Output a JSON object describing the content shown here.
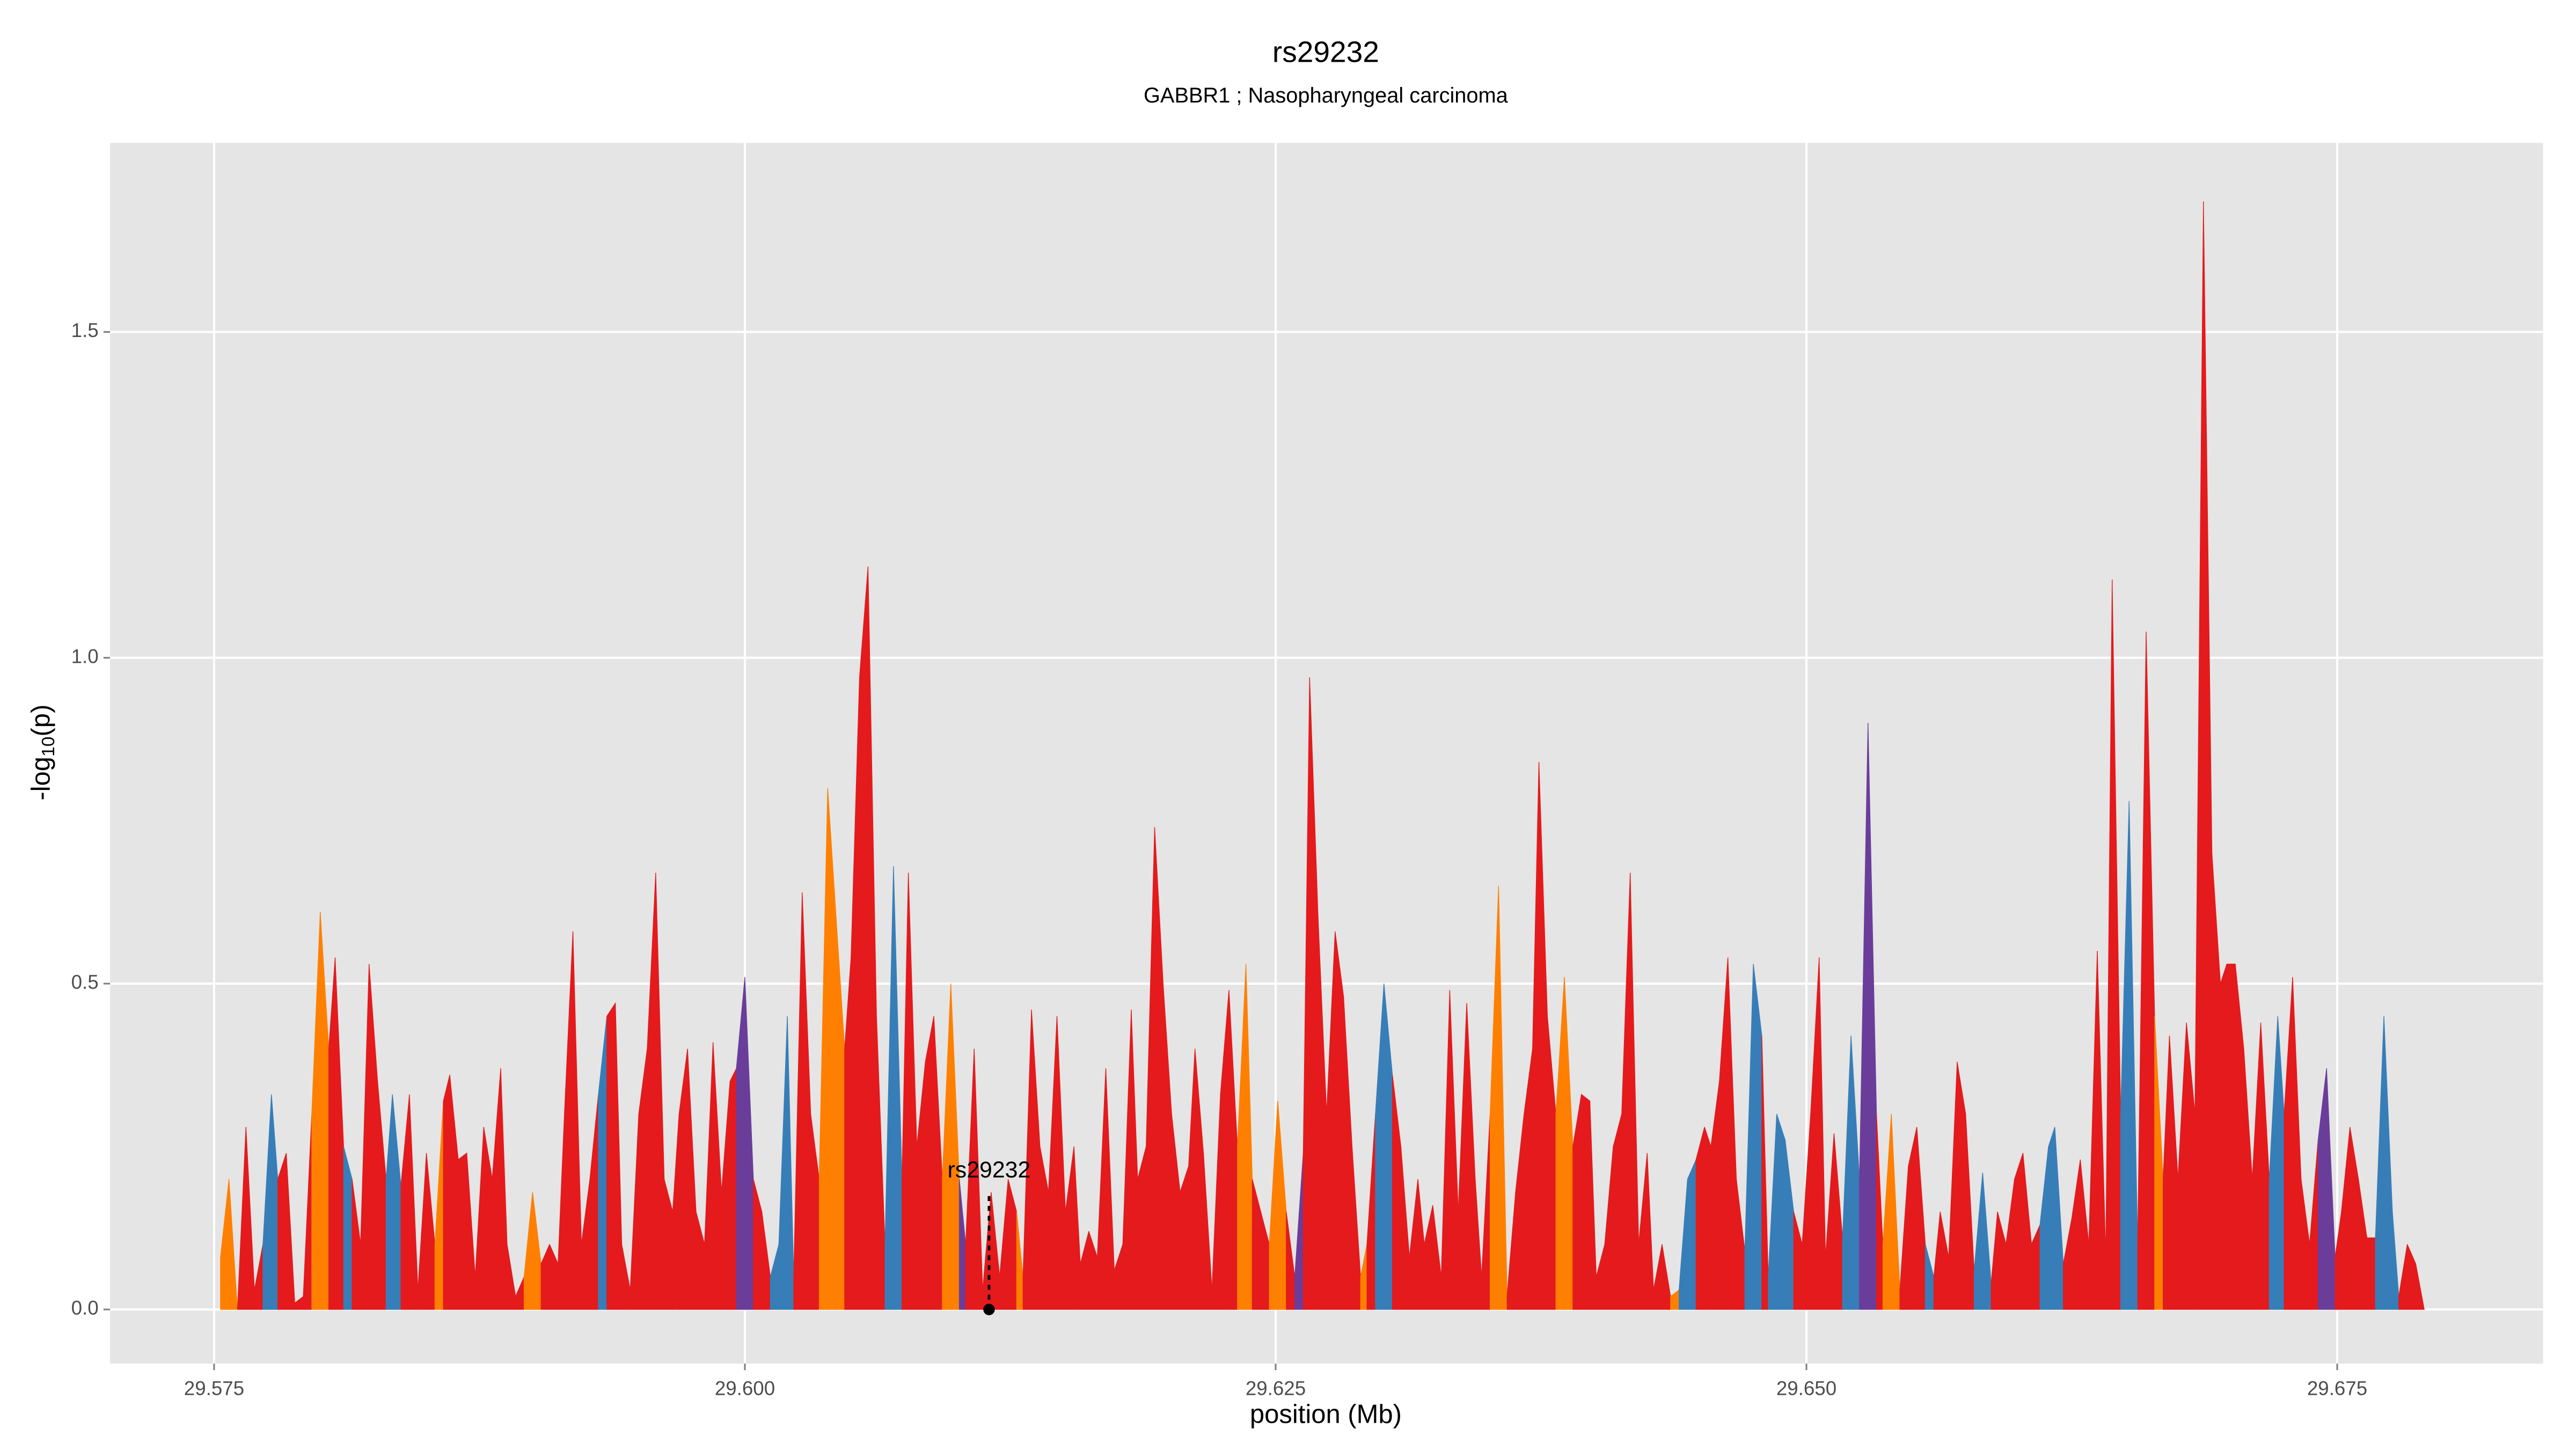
{
  "chart_data": {
    "type": "area",
    "title": "rs29232",
    "subtitle": "GABBR1 ; Nasopharyngeal carcinoma",
    "xlabel": "position (Mb)",
    "ylabel": [
      "-log",
      "10",
      "(p)"
    ],
    "xlim": [
      29.5701,
      29.6847
    ],
    "ylim": [
      -0.083,
      1.79
    ],
    "xticks": [
      29.575,
      {
        "value": 29.6,
        "label": "29.600"
      },
      29.625,
      {
        "value": 29.65,
        "label": "29.650"
      },
      29.675
    ],
    "yticks": [
      {
        "value": 0,
        "label": "0.0"
      },
      0.5,
      {
        "value": 1,
        "label": "1.0"
      },
      1.5
    ],
    "grid": true,
    "annotation": {
      "text": "rs29232",
      "x": 29.6115,
      "y": 0
    },
    "x": [
      29.5753,
      29.5757,
      29.5761,
      29.5765,
      29.5769,
      29.5773,
      29.5777,
      29.578,
      29.5784,
      29.5788,
      29.5792,
      29.5796,
      29.58,
      29.5804,
      29.5807,
      29.5811,
      29.5815,
      29.5819,
      29.5823,
      29.5827,
      29.5831,
      29.5834,
      29.5838,
      29.5842,
      29.5846,
      29.585,
      29.5854,
      29.5858,
      29.5861,
      29.5865,
      29.5869,
      29.5873,
      29.5877,
      29.5881,
      29.5885,
      29.5888,
      29.5892,
      29.5896,
      29.59,
      29.5904,
      29.5908,
      29.5912,
      29.5915,
      29.5919,
      29.5923,
      29.5927,
      29.5931,
      29.5935,
      29.5939,
      29.5942,
      29.5946,
      29.595,
      29.5954,
      29.5958,
      29.5962,
      29.5966,
      29.5969,
      29.5973,
      29.5977,
      29.5981,
      29.5985,
      29.5989,
      29.5993,
      29.5996,
      29.6,
      29.6004,
      29.6008,
      29.6012,
      29.6016,
      29.602,
      29.6023,
      29.6027,
      29.6031,
      29.6035,
      29.6039,
      29.6043,
      29.6047,
      29.605,
      29.6054,
      29.6058,
      29.6062,
      29.6066,
      29.607,
      29.6074,
      29.6077,
      29.6081,
      29.6085,
      29.6089,
      29.6093,
      29.6097,
      29.6101,
      29.6104,
      29.6108,
      29.6112,
      29.6116,
      29.612,
      29.6124,
      29.6128,
      29.6131,
      29.6135,
      29.6139,
      29.6143,
      29.6147,
      29.6151,
      29.6155,
      29.6158,
      29.6162,
      29.6166,
      29.617,
      29.6174,
      29.6178,
      29.6182,
      29.6185,
      29.6189,
      29.6193,
      29.6197,
      29.6201,
      29.6205,
      29.6209,
      29.6212,
      29.6216,
      29.622,
      29.6224,
      29.6228,
      29.6232,
      29.6236,
      29.6239,
      29.6243,
      29.6247,
      29.6251,
      29.6255,
      29.6259,
      29.6263,
      29.6266,
      29.627,
      29.6274,
      29.6278,
      29.6282,
      29.6286,
      29.629,
      29.6293,
      29.6297,
      29.6301,
      29.6305,
      29.6309,
      29.6313,
      29.6317,
      29.632,
      29.6324,
      29.6328,
      29.6332,
      29.6336,
      29.634,
      29.6344,
      29.6347,
      29.6351,
      29.6355,
      29.6359,
      29.6363,
      29.6367,
      29.6371,
      29.6374,
      29.6378,
      29.6382,
      29.6386,
      29.639,
      29.6394,
      29.6398,
      29.6401,
      29.6405,
      29.6409,
      29.6413,
      29.6417,
      29.6421,
      29.6425,
      29.6428,
      29.6432,
      29.6436,
      29.644,
      29.6444,
      29.6448,
      29.6452,
      29.6455,
      29.6459,
      29.6463,
      29.6467,
      29.6471,
      29.6475,
      29.6479,
      29.6482,
      29.6486,
      29.649,
      29.6494,
      29.6498,
      29.6502,
      29.6506,
      29.6509,
      29.6513,
      29.6517,
      29.6521,
      29.6525,
      29.6529,
      29.6533,
      29.6536,
      29.654,
      29.6544,
      29.6548,
      29.6552,
      29.6556,
      29.656,
      29.6563,
      29.6567,
      29.6571,
      29.6575,
      29.6579,
      29.6583,
      29.6587,
      29.659,
      29.6594,
      29.6598,
      29.6602,
      29.6606,
      29.661,
      29.6614,
      29.6617,
      29.6621,
      29.6625,
      29.6629,
      29.6633,
      29.6637,
      29.6641,
      29.6644,
      29.6648,
      29.6652,
      29.6656,
      29.666,
      29.6664,
      29.6668,
      29.6671,
      29.6675,
      29.6679,
      29.6683,
      29.6687,
      29.6691,
      29.6695,
      29.6698,
      29.6702,
      29.6706,
      29.671,
      29.6714,
      29.6718,
      29.6722,
      29.6725,
      29.6729,
      29.6733,
      29.6737,
      29.6741,
      29.6745,
      29.6749,
      29.6752,
      29.6756,
      29.676,
      29.6764,
      29.6768,
      29.6772,
      29.6776,
      29.6779,
      29.6783,
      29.6787,
      29.6791
    ],
    "values": [
      0.08,
      0.2,
      0,
      0.28,
      0.03,
      0.1,
      0.33,
      0.2,
      0.24,
      0.01,
      0.02,
      0.3,
      0.61,
      0.4,
      0.54,
      0.25,
      0.2,
      0.1,
      0.53,
      0.35,
      0.2,
      0.33,
      0.19,
      0.33,
      0.03,
      0.24,
      0.1,
      0.32,
      0.36,
      0.23,
      0.24,
      0.05,
      0.28,
      0.2,
      0.37,
      0.1,
      0.02,
      0.05,
      0.18,
      0.07,
      0.1,
      0.07,
      0.3,
      0.58,
      0.1,
      0.2,
      0.33,
      0.45,
      0.47,
      0.1,
      0.03,
      0.3,
      0.4,
      0.67,
      0.2,
      0.15,
      0.3,
      0.4,
      0.15,
      0.1,
      0.41,
      0.18,
      0.35,
      0.37,
      0.51,
      0.2,
      0.15,
      0.05,
      0.1,
      0.45,
      0.05,
      0.64,
      0.3,
      0.2,
      0.8,
      0.6,
      0.4,
      0.54,
      0.97,
      1.14,
      0.45,
      0.1,
      0.68,
      0.2,
      0.67,
      0.25,
      0.38,
      0.45,
      0.2,
      0.5,
      0.2,
      0.1,
      0.4,
      0.03,
      0.18,
      0.05,
      0.2,
      0.15,
      0.05,
      0.46,
      0.25,
      0.18,
      0.45,
      0.15,
      0.25,
      0.07,
      0.12,
      0.08,
      0.37,
      0.06,
      0.1,
      0.46,
      0.2,
      0.25,
      0.74,
      0.5,
      0.3,
      0.18,
      0.22,
      0.4,
      0.24,
      0.03,
      0.33,
      0.49,
      0.25,
      0.53,
      0.2,
      0.15,
      0.1,
      0.32,
      0.15,
      0.05,
      0.24,
      0.97,
      0.6,
      0.3,
      0.58,
      0.48,
      0.25,
      0.05,
      0.1,
      0.3,
      0.5,
      0.36,
      0.25,
      0.08,
      0.2,
      0.1,
      0.16,
      0.05,
      0.49,
      0.15,
      0.47,
      0.2,
      0.05,
      0.3,
      0.65,
      0.02,
      0.18,
      0.3,
      0.4,
      0.84,
      0.45,
      0.3,
      0.51,
      0.25,
      0.33,
      0.32,
      0.05,
      0.1,
      0.25,
      0.3,
      0.67,
      0.1,
      0.24,
      0.03,
      0.1,
      0.02,
      0.03,
      0.2,
      0.23,
      0.28,
      0.25,
      0.35,
      0.54,
      0.2,
      0.09,
      0.53,
      0.42,
      0.05,
      0.3,
      0.26,
      0.15,
      0.1,
      0.3,
      0.54,
      0.08,
      0.27,
      0.11,
      0.42,
      0.2,
      0.9,
      0.3,
      0.1,
      0.3,
      0.03,
      0.22,
      0.28,
      0.1,
      0.05,
      0.15,
      0.08,
      0.38,
      0.3,
      0.06,
      0.21,
      0.04,
      0.15,
      0.1,
      0.2,
      0.24,
      0.1,
      0.13,
      0.25,
      0.28,
      0.07,
      0.14,
      0.23,
      0.1,
      0.55,
      0.08,
      1.12,
      0.3,
      0.78,
      0.1,
      1.04,
      0.45,
      0.2,
      0.42,
      0.2,
      0.44,
      0.3,
      1.7,
      0.7,
      0.5,
      0.53,
      0.53,
      0.4,
      0.2,
      0.44,
      0.2,
      0.45,
      0.3,
      0.51,
      0.2,
      0.1,
      0.26,
      0.37,
      0.08,
      0.15,
      0.28,
      0.2,
      0.11,
      0.11,
      0.45,
      0.15,
      0.02,
      0.1,
      0.07,
      0
    ],
    "colors": [
      "#e41a1c",
      "#ff7f00",
      "#e41a1c",
      "#e41a1c",
      "#e41a1c",
      "#e41a1c",
      "#377eb8",
      "#e41a1c",
      "#e41a1c",
      "#e41a1c",
      "#e41a1c",
      "#e41a1c",
      "#ff7f00",
      "#e41a1c",
      "#e41a1c",
      "#377eb8",
      "#e41a1c",
      "#e41a1c",
      "#e41a1c",
      "#e41a1c",
      "#e41a1c",
      "#377eb8",
      "#e41a1c",
      "#e41a1c",
      "#377eb8",
      "#e41a1c",
      "#e41a1c",
      "#ff7f00",
      "#e41a1c",
      "#e41a1c",
      "#e41a1c",
      "#e41a1c",
      "#e41a1c",
      "#e41a1c",
      "#e41a1c",
      "#e41a1c",
      "#e41a1c",
      "#e41a1c",
      "#ff7f00",
      "#e41a1c",
      "#e41a1c",
      "#e41a1c",
      "#e41a1c",
      "#e41a1c",
      "#e41a1c",
      "#e41a1c",
      "#e41a1c",
      "#377eb8",
      "#e41a1c",
      "#e41a1c",
      "#ff7f00",
      "#e41a1c",
      "#e41a1c",
      "#e41a1c",
      "#e41a1c",
      "#e41a1c",
      "#e41a1c",
      "#e41a1c",
      "#e41a1c",
      "#e41a1c",
      "#e41a1c",
      "#e41a1c",
      "#e41a1c",
      "#e41a1c",
      "#6a3d9a",
      "#e41a1c",
      "#e41a1c",
      "#377eb8",
      "#377eb8",
      "#377eb8",
      "#e41a1c",
      "#e41a1c",
      "#e41a1c",
      "#ff7f00",
      "#ff7f00",
      "#ff7f00",
      "#e41a1c",
      "#e41a1c",
      "#e41a1c",
      "#e41a1c",
      "#e41a1c",
      "#e41a1c",
      "#377eb8",
      "#e41a1c",
      "#e41a1c",
      "#e41a1c",
      "#e41a1c",
      "#e41a1c",
      "#e41a1c",
      "#ff7f00",
      "#6a3d9a",
      "#e41a1c",
      "#e41a1c",
      "#e41a1c",
      "#e41a1c",
      "#e41a1c",
      "#e41a1c",
      "#ff7f00",
      "#e41a1c",
      "#e41a1c",
      "#e41a1c",
      "#e41a1c",
      "#e41a1c",
      "#e41a1c",
      "#e41a1c",
      "#e41a1c",
      "#e41a1c",
      "#e41a1c",
      "#e41a1c",
      "#e41a1c",
      "#e41a1c",
      "#e41a1c",
      "#e41a1c",
      "#e41a1c",
      "#e41a1c",
      "#e41a1c",
      "#e41a1c",
      "#ff7f00",
      "#e41a1c",
      "#e41a1c",
      "#e41a1c",
      "#e41a1c",
      "#e41a1c",
      "#e41a1c",
      "#e41a1c",
      "#ff7f00",
      "#e41a1c",
      "#e41a1c",
      "#e41a1c",
      "#ff7f00",
      "#e41a1c",
      "#e41a1c",
      "#6a3d9a",
      "#e41a1c",
      "#e41a1c",
      "#e41a1c",
      "#e41a1c",
      "#e41a1c",
      "#e41a1c",
      "#e41a1c",
      "#ff7f00",
      "#e41a1c",
      "#377eb8",
      "#e41a1c",
      "#e41a1c",
      "#e41a1c",
      "#e41a1c",
      "#e41a1c",
      "#e41a1c",
      "#e41a1c",
      "#e41a1c",
      "#377eb8",
      "#e41a1c",
      "#e41a1c",
      "#e41a1c",
      "#e41a1c",
      "#ff7f00",
      "#ff7f00",
      "#e41a1c",
      "#e41a1c",
      "#e41a1c",
      "#e41a1c",
      "#e41a1c",
      "#e41a1c",
      "#ff7f00",
      "#e41a1c",
      "#e41a1c",
      "#e41a1c",
      "#e41a1c",
      "#e41a1c",
      "#e41a1c",
      "#e41a1c",
      "#e41a1c",
      "#e41a1c",
      "#e41a1c",
      "#e41a1c",
      "#e41a1c",
      "#e41a1c",
      "#ff7f00",
      "#377eb8",
      "#377eb8",
      "#e41a1c",
      "#6a3d9a",
      "#e41a1c",
      "#e41a1c",
      "#e41a1c",
      "#e41a1c",
      "#377eb8",
      "#e41a1c",
      "#e41a1c",
      "#377eb8",
      "#377eb8",
      "#e41a1c",
      "#e41a1c",
      "#e41a1c",
      "#e41a1c",
      "#e41a1c",
      "#e41a1c",
      "#e41a1c",
      "#377eb8",
      "#e41a1c",
      "#6a3d9a",
      "#e41a1c",
      "#e41a1c",
      "#ff7f00",
      "#e41a1c",
      "#e41a1c",
      "#e41a1c",
      "#377eb8",
      "#e41a1c",
      "#e41a1c",
      "#e41a1c",
      "#e41a1c",
      "#e41a1c",
      "#e41a1c",
      "#377eb8",
      "#377eb8",
      "#e41a1c",
      "#e41a1c",
      "#e41a1c",
      "#e41a1c",
      "#377eb8",
      "#e41a1c",
      "#377eb8",
      "#377eb8",
      "#377eb8",
      "#e41a1c",
      "#e41a1c",
      "#e41a1c",
      "#e41a1c",
      "#377eb8",
      "#e41a1c",
      "#e41a1c",
      "#377eb8",
      "#e41a1c",
      "#e41a1c",
      "#ff7f00",
      "#e41a1c",
      "#e41a1c",
      "#e41a1c",
      "#e41a1c",
      "#e41a1c",
      "#e41a1c",
      "#e41a1c",
      "#ff7f00",
      "#e41a1c",
      "#e41a1c",
      "#e41a1c",
      "#6a3d9a",
      "#e41a1c",
      "#e41a1c",
      "#377eb8",
      "#e41a1c",
      "#e41a1c",
      "#e41a1c",
      "#e41a1c",
      "#e41a1c",
      "#6a3d9a",
      "#e41a1c",
      "#e41a1c",
      "#e41a1c",
      "#e41a1c",
      "#e41a1c",
      "#377eb8",
      "#377eb8",
      "#377eb8",
      "#e41a1c",
      "#e41a1c",
      "#e41a1c",
      "#e41a1c"
    ]
  }
}
